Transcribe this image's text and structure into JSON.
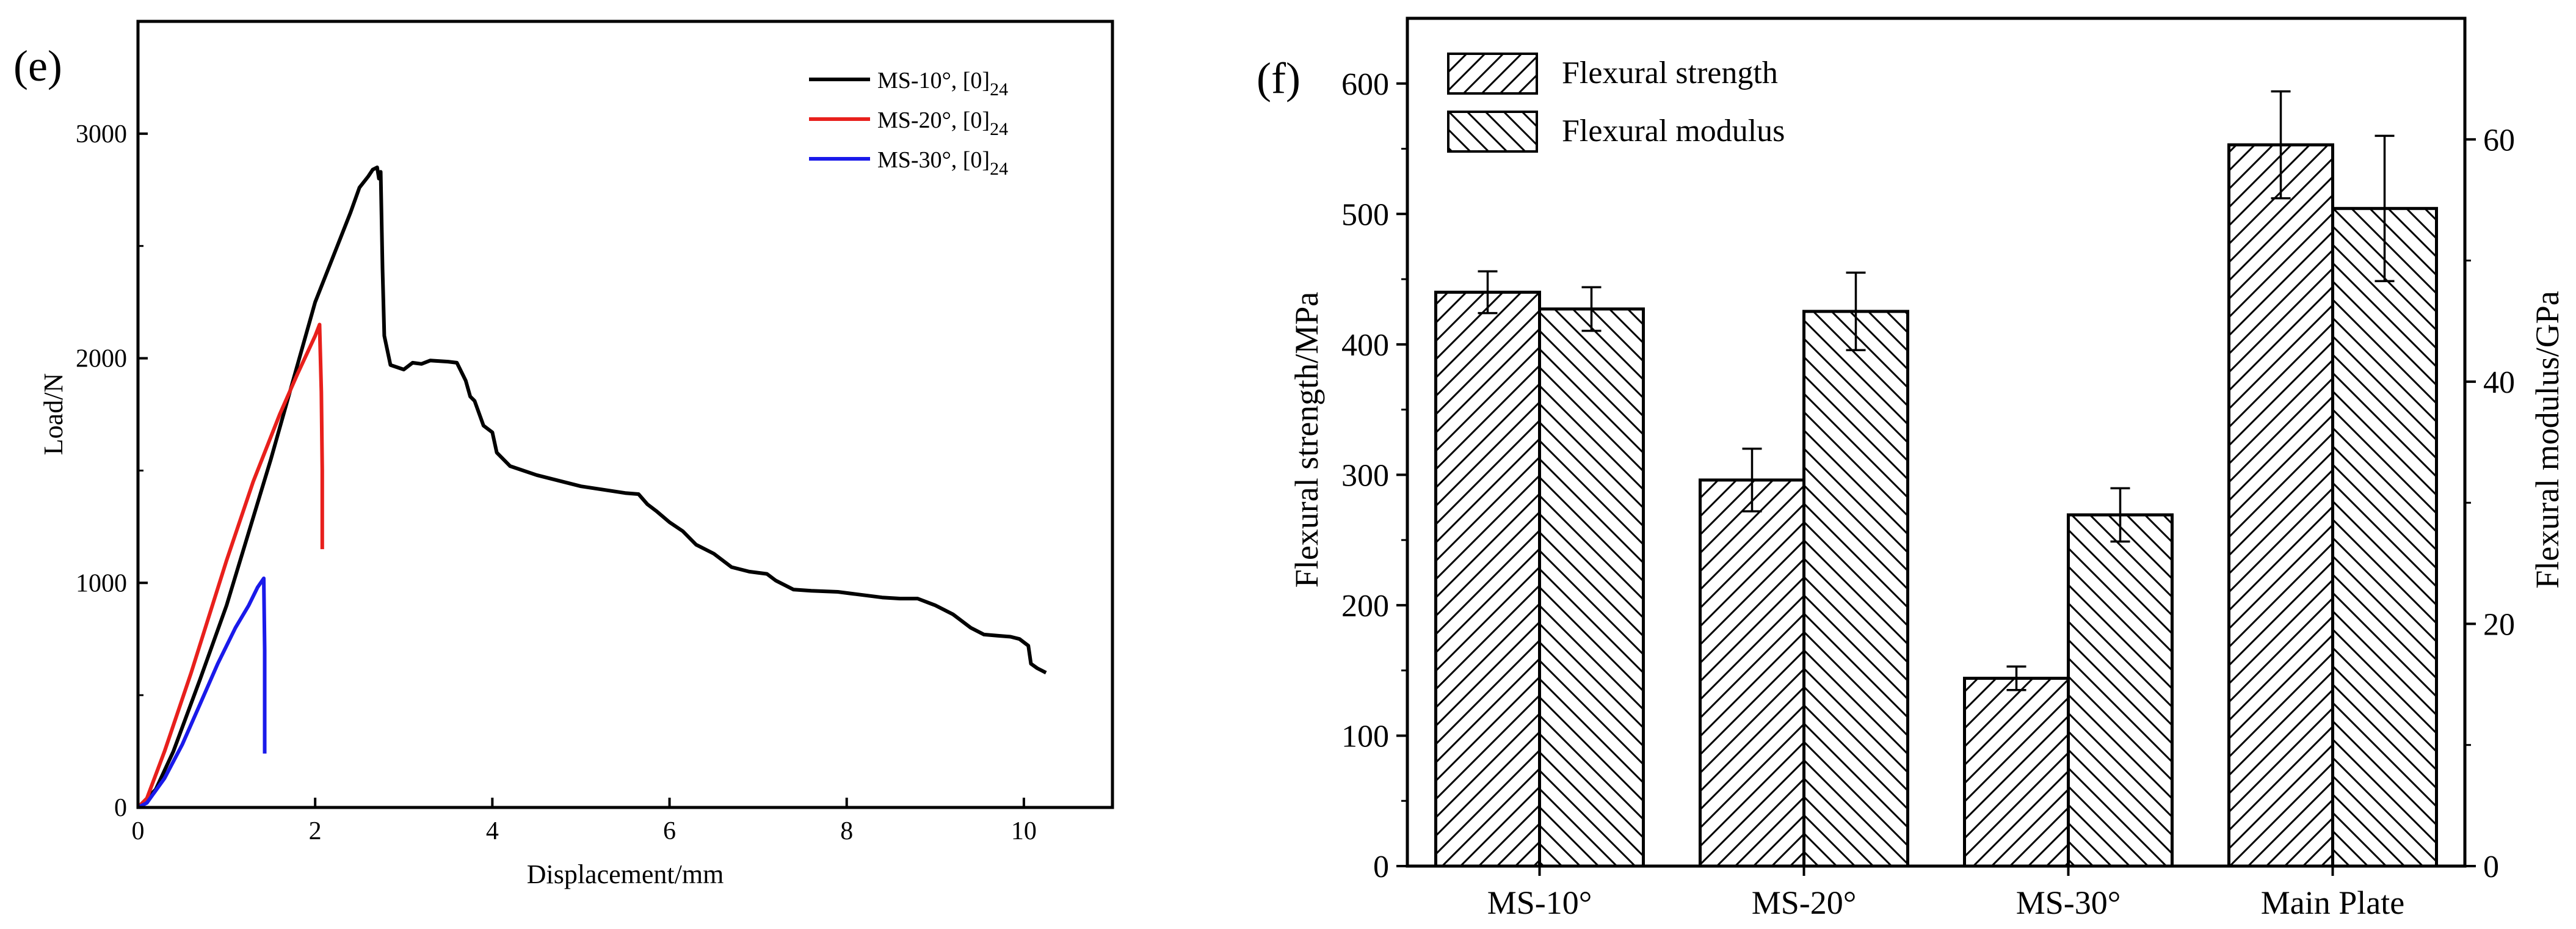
{
  "chart_data": [
    {
      "panel": "(e)",
      "type": "line",
      "title": "",
      "xlabel": "Displacement/mm",
      "ylabel": "Load/N",
      "xlim": [
        0,
        11
      ],
      "ylim": [
        0,
        3500
      ],
      "xticks": [
        0,
        2,
        4,
        6,
        8,
        10
      ],
      "yticks": [
        0,
        1000,
        2000,
        3000
      ],
      "grid": false,
      "legend_position": "top-right",
      "legend": [
        {
          "label": "MS-10°, [0]",
          "sub": "24",
          "color": "#000000"
        },
        {
          "label": "MS-20°, [0]",
          "sub": "24",
          "color": "#e8201c"
        },
        {
          "label": "MS-30°, [0]",
          "sub": "24",
          "color": "#1a1aea"
        }
      ],
      "series": [
        {
          "name": "MS-10°, [0]24",
          "color": "#000000",
          "points": [
            [
              0,
              0
            ],
            [
              0.2,
              80
            ],
            [
              0.4,
              250
            ],
            [
              0.7,
              570
            ],
            [
              1.0,
              900
            ],
            [
              1.5,
              1550
            ],
            [
              2.0,
              2250
            ],
            [
              2.25,
              2500
            ],
            [
              2.4,
              2650
            ],
            [
              2.5,
              2760
            ],
            [
              2.6,
              2810
            ],
            [
              2.65,
              2840
            ],
            [
              2.7,
              2850
            ],
            [
              2.72,
              2800
            ],
            [
              2.74,
              2830
            ],
            [
              2.76,
              2400
            ],
            [
              2.78,
              2100
            ],
            [
              2.85,
              1970
            ],
            [
              3.0,
              1950
            ],
            [
              3.1,
              1980
            ],
            [
              3.2,
              1975
            ],
            [
              3.3,
              1990
            ],
            [
              3.5,
              1985
            ],
            [
              3.6,
              1980
            ],
            [
              3.7,
              1900
            ],
            [
              3.75,
              1830
            ],
            [
              3.8,
              1810
            ],
            [
              3.9,
              1700
            ],
            [
              4.0,
              1670
            ],
            [
              4.05,
              1580
            ],
            [
              4.2,
              1520
            ],
            [
              4.5,
              1480
            ],
            [
              5.0,
              1430
            ],
            [
              5.5,
              1400
            ],
            [
              5.65,
              1395
            ],
            [
              5.75,
              1350
            ],
            [
              5.85,
              1320
            ],
            [
              6.0,
              1270
            ],
            [
              6.15,
              1230
            ],
            [
              6.3,
              1170
            ],
            [
              6.5,
              1130
            ],
            [
              6.7,
              1070
            ],
            [
              6.9,
              1050
            ],
            [
              7.1,
              1040
            ],
            [
              7.2,
              1010
            ],
            [
              7.4,
              970
            ],
            [
              7.6,
              965
            ],
            [
              7.9,
              960
            ],
            [
              8.1,
              950
            ],
            [
              8.4,
              935
            ],
            [
              8.6,
              930
            ],
            [
              8.8,
              930
            ],
            [
              9.0,
              900
            ],
            [
              9.2,
              860
            ],
            [
              9.4,
              800
            ],
            [
              9.55,
              770
            ],
            [
              9.7,
              765
            ],
            [
              9.85,
              760
            ],
            [
              9.95,
              750
            ],
            [
              10.05,
              720
            ],
            [
              10.08,
              640
            ],
            [
              10.15,
              620
            ],
            [
              10.25,
              600
            ]
          ]
        },
        {
          "name": "MS-20°, [0]24",
          "color": "#e8201c",
          "points": [
            [
              0,
              0
            ],
            [
              0.1,
              40
            ],
            [
              0.3,
              250
            ],
            [
              0.6,
              600
            ],
            [
              1.0,
              1100
            ],
            [
              1.3,
              1450
            ],
            [
              1.6,
              1750
            ],
            [
              1.8,
              1930
            ],
            [
              2.0,
              2100
            ],
            [
              2.05,
              2150
            ],
            [
              2.07,
              1850
            ],
            [
              2.08,
              1500
            ],
            [
              2.08,
              1150
            ]
          ]
        },
        {
          "name": "MS-30°, [0]24",
          "color": "#1a1aea",
          "points": [
            [
              0,
              0
            ],
            [
              0.1,
              20
            ],
            [
              0.3,
              130
            ],
            [
              0.5,
              280
            ],
            [
              0.7,
              460
            ],
            [
              0.9,
              640
            ],
            [
              1.1,
              800
            ],
            [
              1.25,
              900
            ],
            [
              1.35,
              980
            ],
            [
              1.42,
              1020
            ],
            [
              1.43,
              700
            ],
            [
              1.43,
              240
            ]
          ]
        }
      ]
    },
    {
      "panel": "(f)",
      "type": "bar",
      "title": "",
      "categories": [
        "MS-10°",
        "MS-20°",
        "MS-30°",
        "Main Plate"
      ],
      "ylabel": "Flexural strength/MPa",
      "y2label": "Flexural modulus/GPa",
      "ylim": [
        0,
        650
      ],
      "y2lim": [
        0,
        70
      ],
      "yticks": [
        0,
        100,
        200,
        300,
        400,
        500,
        600
      ],
      "y2ticks": [
        0,
        20,
        40,
        60
      ],
      "grid": false,
      "legend_position": "top-left",
      "legend": [
        {
          "label": "Flexural strength",
          "hatch": "forward"
        },
        {
          "label": "Flexural modulus",
          "hatch": "backward"
        }
      ],
      "series": [
        {
          "name": "Flexural strength",
          "axis": "left",
          "hatch": "forward",
          "values": [
            440,
            296,
            144,
            553
          ],
          "errors": [
            16,
            24,
            9,
            41
          ]
        },
        {
          "name": "Flexural modulus",
          "axis": "right",
          "hatch": "backward",
          "values": [
            46,
            45.8,
            29,
            54.3
          ],
          "errors": [
            1.8,
            3.2,
            2.2,
            6.0
          ]
        }
      ]
    }
  ]
}
